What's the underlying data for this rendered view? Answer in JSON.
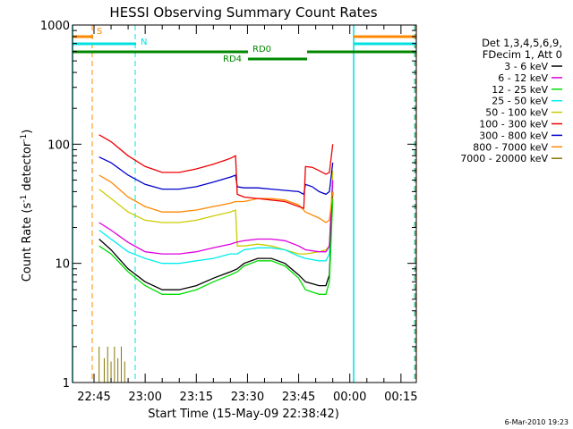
{
  "chart_data": {
    "type": "line",
    "title": "HESSI Observing Summary Count Rates",
    "xlabel": "Start Time (15-May-09 22:38:42)",
    "ylabel_main": "Count Rate (s",
    "ylabel_sup1": "-1",
    "ylabel_mid": " detector",
    "ylabel_sup2": "-1",
    "ylabel_end": ")",
    "y_scale": "log",
    "ylim": [
      1,
      1000
    ],
    "xlim_minutes": [
      -6.3,
      94.5
    ],
    "x_ticks": [
      {
        "t": 0,
        "label": "22:45"
      },
      {
        "t": 15,
        "label": "23:00"
      },
      {
        "t": 30,
        "label": "23:15"
      },
      {
        "t": 45,
        "label": "23:30"
      },
      {
        "t": 60,
        "label": "23:45"
      },
      {
        "t": 75,
        "label": "00:00"
      },
      {
        "t": 90,
        "label": "00:15"
      }
    ],
    "y_ticks": [
      {
        "v": 1,
        "label": "1"
      },
      {
        "v": 10,
        "label": "10"
      },
      {
        "v": 100,
        "label": "100"
      },
      {
        "v": 1000,
        "label": "1000"
      }
    ],
    "legend_title": [
      "Det 1,3,4,5,6,9,",
      "FDecim 1, Att 0"
    ],
    "series": [
      {
        "name": "3 - 6 keV",
        "color": "#000000",
        "values": [
          [
            1.5,
            16
          ],
          [
            5,
            13
          ],
          [
            10,
            9
          ],
          [
            15,
            7
          ],
          [
            20,
            6
          ],
          [
            25,
            6
          ],
          [
            30,
            6.5
          ],
          [
            35,
            7.5
          ],
          [
            40,
            8.5
          ],
          [
            42,
            9
          ],
          [
            44,
            10
          ],
          [
            48,
            11
          ],
          [
            52,
            11
          ],
          [
            56,
            10
          ],
          [
            60,
            8
          ],
          [
            62,
            7
          ],
          [
            66,
            6.5
          ],
          [
            68,
            6.5
          ],
          [
            69,
            8
          ],
          [
            70,
            40
          ]
        ]
      },
      {
        "name": "6 - 12 keV",
        "color": "#dd00dd",
        "values": [
          [
            1.5,
            22
          ],
          [
            5,
            19
          ],
          [
            10,
            15
          ],
          [
            15,
            12.5
          ],
          [
            20,
            12
          ],
          [
            25,
            12
          ],
          [
            30,
            12.5
          ],
          [
            35,
            13.5
          ],
          [
            40,
            14.5
          ],
          [
            41.5,
            15
          ],
          [
            44,
            15.5
          ],
          [
            48,
            16
          ],
          [
            52,
            16
          ],
          [
            56,
            15.5
          ],
          [
            60,
            14
          ],
          [
            62,
            13
          ],
          [
            66,
            12.5
          ],
          [
            68,
            12.5
          ],
          [
            69,
            14
          ],
          [
            70,
            50
          ]
        ]
      },
      {
        "name": "12 - 25 keV",
        "color": "#00dd00",
        "values": [
          [
            1.5,
            14
          ],
          [
            5,
            12
          ],
          [
            10,
            8.5
          ],
          [
            15,
            6.5
          ],
          [
            20,
            5.5
          ],
          [
            25,
            5.5
          ],
          [
            30,
            6
          ],
          [
            35,
            7
          ],
          [
            40,
            8
          ],
          [
            42,
            8.5
          ],
          [
            44,
            9.5
          ],
          [
            48,
            10.5
          ],
          [
            52,
            10.5
          ],
          [
            56,
            9.5
          ],
          [
            60,
            7.5
          ],
          [
            62,
            6
          ],
          [
            66,
            5.5
          ],
          [
            68,
            5.5
          ],
          [
            69,
            7
          ],
          [
            70,
            35
          ]
        ]
      },
      {
        "name": "25 - 50 keV",
        "color": "#00eeee",
        "values": [
          [
            1.5,
            19
          ],
          [
            5,
            16
          ],
          [
            10,
            12.5
          ],
          [
            15,
            11
          ],
          [
            20,
            10
          ],
          [
            25,
            10
          ],
          [
            30,
            10.5
          ],
          [
            35,
            11
          ],
          [
            40,
            12
          ],
          [
            42,
            12
          ],
          [
            44,
            13
          ],
          [
            48,
            13.5
          ],
          [
            52,
            13.5
          ],
          [
            56,
            13
          ],
          [
            60,
            11.5
          ],
          [
            62,
            11
          ],
          [
            66,
            10.5
          ],
          [
            68,
            10.5
          ],
          [
            69,
            12
          ],
          [
            70,
            45
          ]
        ]
      },
      {
        "name": "50 - 100 keV",
        "color": "#cccc00",
        "values": [
          [
            1.5,
            42
          ],
          [
            5,
            35
          ],
          [
            10,
            27
          ],
          [
            15,
            23
          ],
          [
            20,
            22
          ],
          [
            25,
            22
          ],
          [
            30,
            23
          ],
          [
            35,
            25
          ],
          [
            40,
            27
          ],
          [
            41.5,
            28
          ],
          [
            42,
            14
          ],
          [
            44,
            14
          ],
          [
            48,
            14.5
          ],
          [
            52,
            14
          ],
          [
            56,
            13
          ],
          [
            60,
            12
          ],
          [
            62,
            12
          ],
          [
            66,
            12.5
          ],
          [
            68,
            13
          ],
          [
            69,
            14
          ],
          [
            70,
            60
          ]
        ]
      },
      {
        "name": "100 - 300 keV",
        "color": "#ee0000",
        "values": [
          [
            1.5,
            120
          ],
          [
            5,
            105
          ],
          [
            10,
            80
          ],
          [
            15,
            65
          ],
          [
            20,
            58
          ],
          [
            25,
            58
          ],
          [
            30,
            62
          ],
          [
            35,
            68
          ],
          [
            40,
            76
          ],
          [
            41.5,
            80
          ],
          [
            42,
            38
          ],
          [
            44,
            36
          ],
          [
            48,
            35
          ],
          [
            52,
            34
          ],
          [
            56,
            33
          ],
          [
            60,
            30
          ],
          [
            61.5,
            29
          ],
          [
            62,
            65
          ],
          [
            64,
            64
          ],
          [
            66,
            60
          ],
          [
            68,
            56
          ],
          [
            69,
            58
          ],
          [
            70,
            100
          ]
        ]
      },
      {
        "name": "300 - 800 keV",
        "color": "#0000cc",
        "values": [
          [
            1.5,
            78
          ],
          [
            5,
            70
          ],
          [
            10,
            55
          ],
          [
            15,
            46
          ],
          [
            20,
            42
          ],
          [
            25,
            42
          ],
          [
            30,
            44
          ],
          [
            35,
            48
          ],
          [
            40,
            53
          ],
          [
            41.5,
            55
          ],
          [
            42,
            44
          ],
          [
            44,
            43
          ],
          [
            48,
            43
          ],
          [
            52,
            42
          ],
          [
            56,
            41
          ],
          [
            60,
            40
          ],
          [
            61.5,
            38
          ],
          [
            62,
            46
          ],
          [
            64,
            44
          ],
          [
            66,
            40
          ],
          [
            68,
            38
          ],
          [
            69,
            40
          ],
          [
            70,
            70
          ]
        ]
      },
      {
        "name": "800 - 7000 keV",
        "color": "#ff8800",
        "values": [
          [
            1.5,
            55
          ],
          [
            5,
            48
          ],
          [
            10,
            36
          ],
          [
            15,
            30
          ],
          [
            20,
            27
          ],
          [
            25,
            27
          ],
          [
            30,
            28
          ],
          [
            35,
            30
          ],
          [
            40,
            32
          ],
          [
            41.5,
            33
          ],
          [
            44,
            33
          ],
          [
            48,
            35
          ],
          [
            52,
            35
          ],
          [
            56,
            34
          ],
          [
            60,
            31
          ],
          [
            62,
            27
          ],
          [
            66,
            24
          ],
          [
            68,
            22
          ],
          [
            69,
            23
          ],
          [
            70,
            40
          ]
        ]
      },
      {
        "name": "7000 - 20000 keV",
        "color": "#887700",
        "values": [
          [
            1.5,
            2
          ],
          [
            3,
            1.6
          ],
          [
            4,
            2
          ],
          [
            5,
            1.5
          ],
          [
            6,
            2
          ],
          [
            7,
            1.6
          ],
          [
            8,
            2
          ],
          [
            9,
            1.5
          ]
        ]
      }
    ],
    "annotations": [
      {
        "label": "S",
        "color": "#ff8800"
      },
      {
        "label": "N",
        "color": "#00e0e0"
      },
      {
        "label": "RD0",
        "color": "#008800"
      },
      {
        "label": "RD4",
        "color": "#008800"
      }
    ],
    "footer_date": "6-Mar-2010 19:23"
  }
}
